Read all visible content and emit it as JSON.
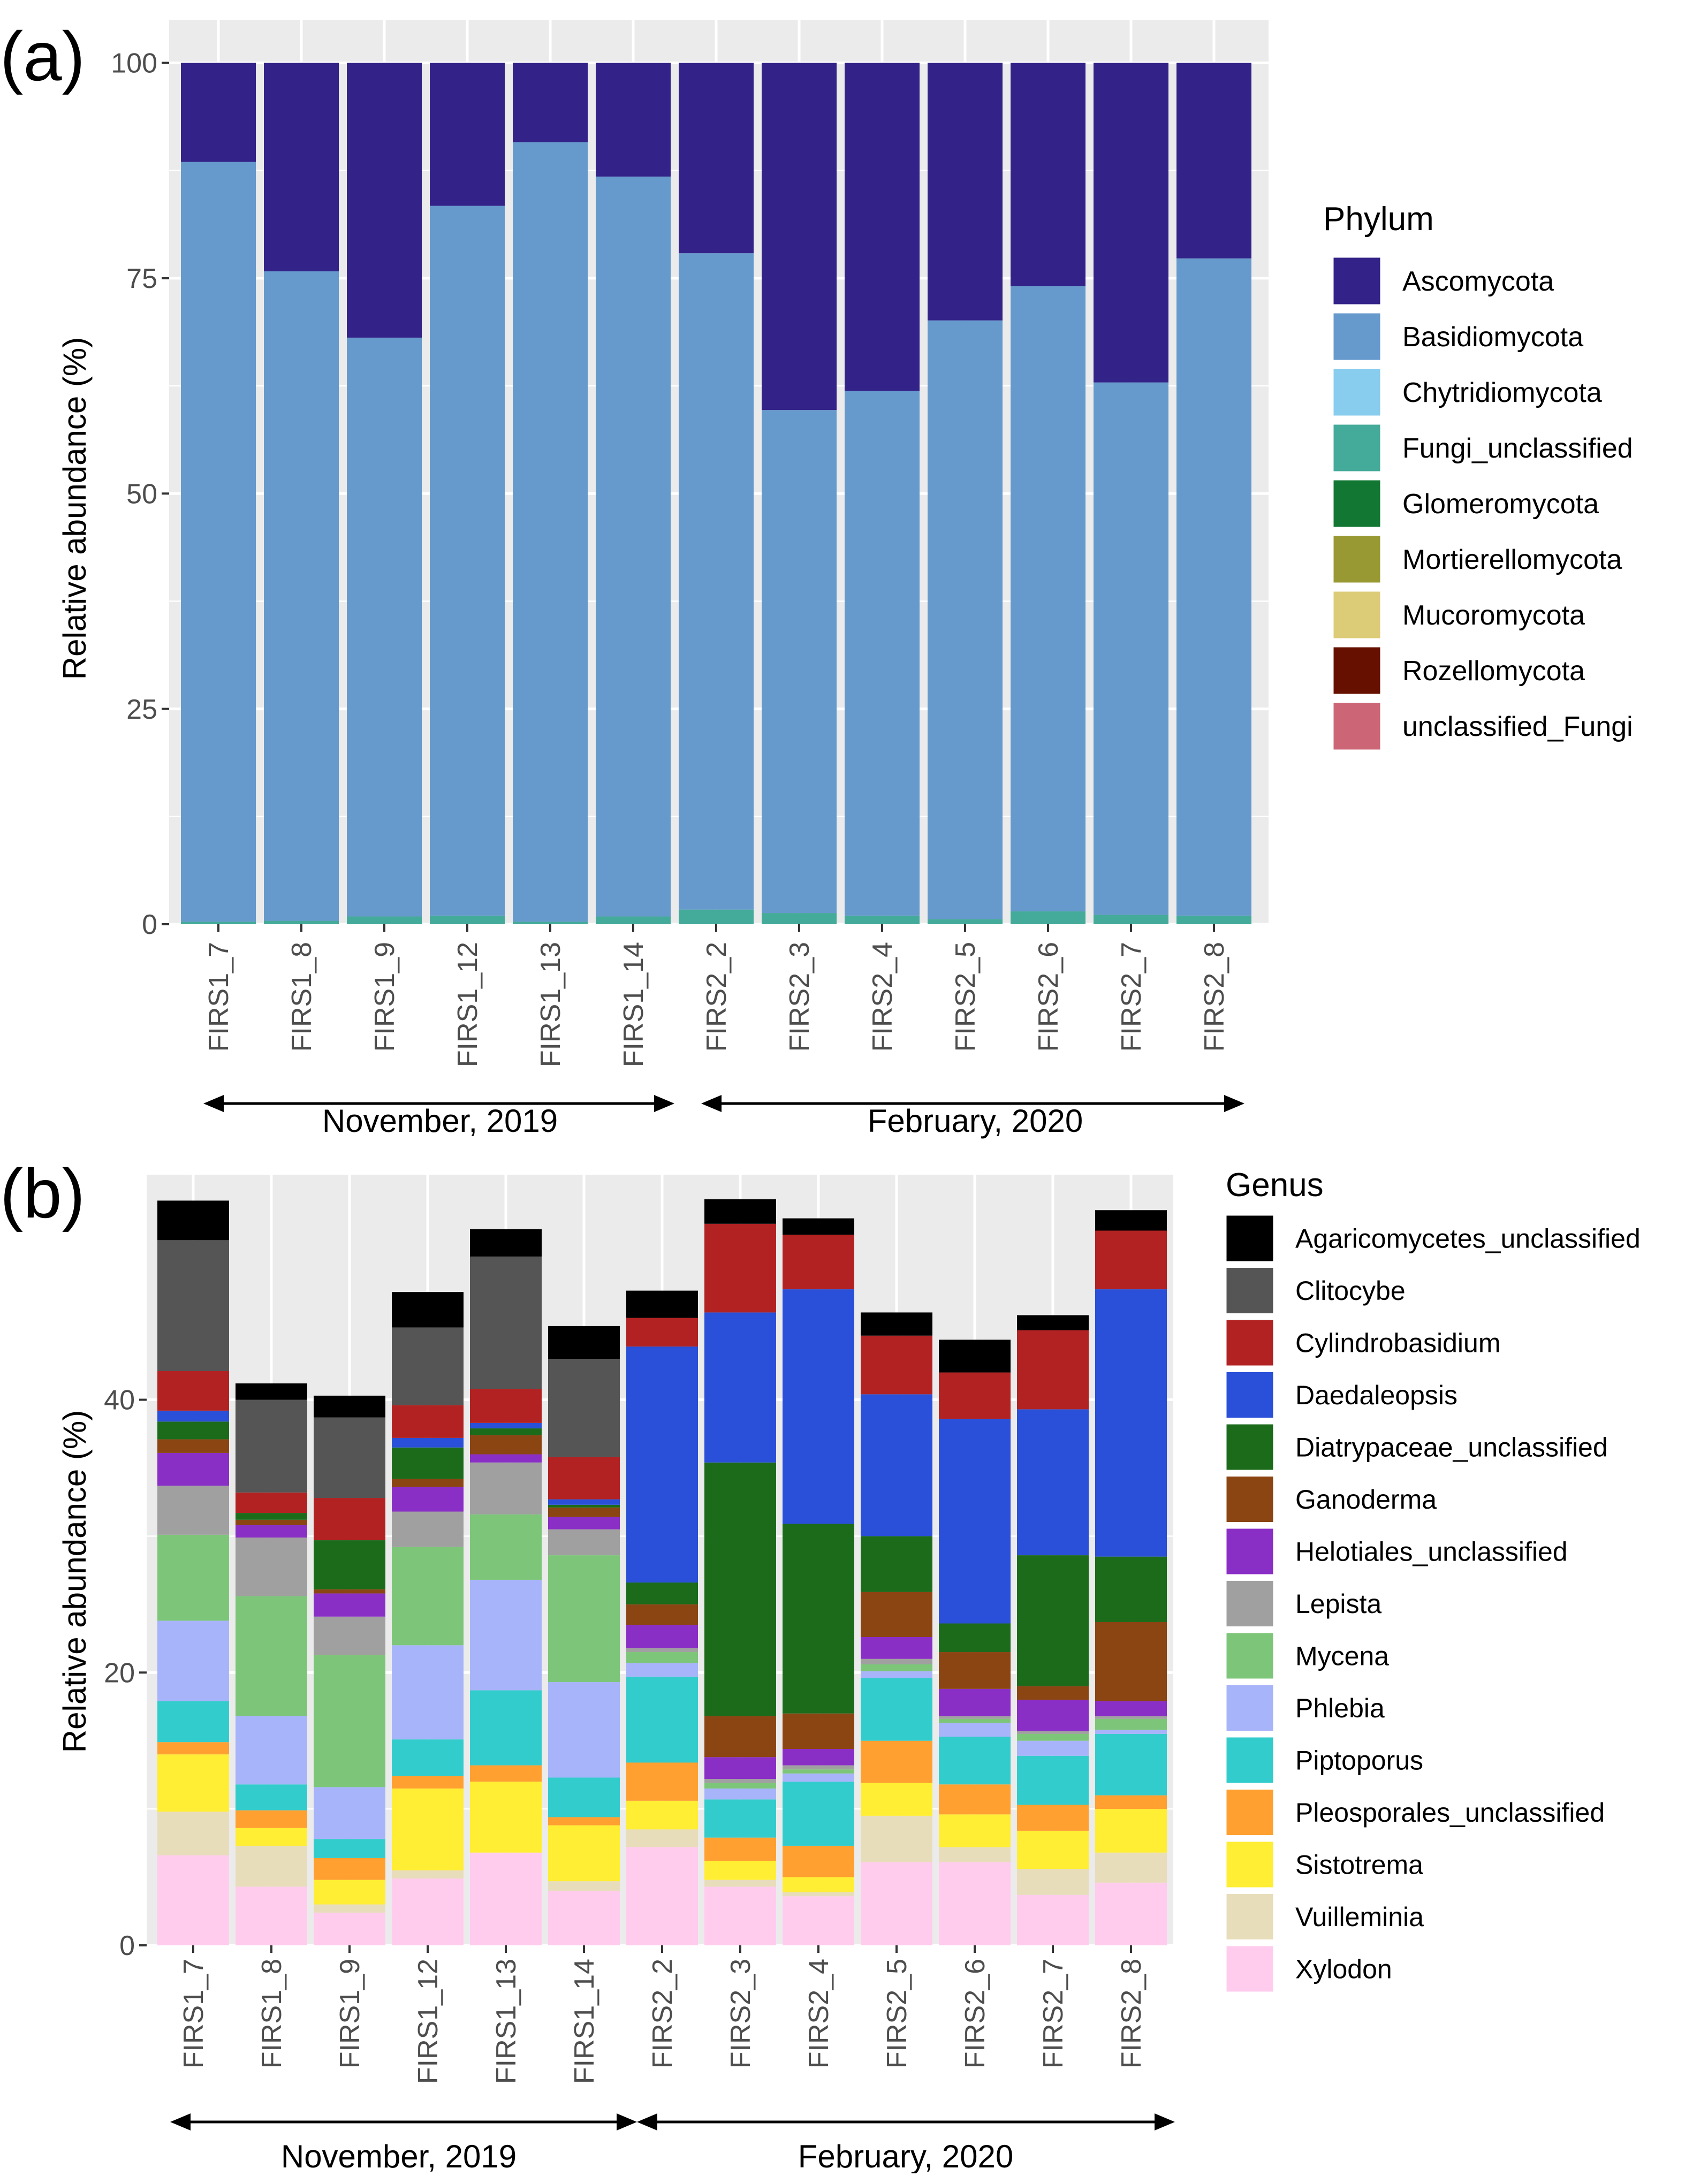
{
  "panel_labels": [
    "(a)",
    "(b)"
  ],
  "period_labels": [
    "November, 2019",
    "February, 2020"
  ],
  "chart_data": [
    {
      "type": "bar",
      "stacked": true,
      "panel": "(a)",
      "ylabel": "Relative abundance (%)",
      "ylim": [
        0,
        100
      ],
      "yticks": [
        0,
        25,
        50,
        75,
        100
      ],
      "categories": [
        "FIRS1_7",
        "FIRS1_8",
        "FIRS1_9",
        "FIRS1_12",
        "FIRS1_13",
        "FIRS1_14",
        "FIRS2_2",
        "FIRS2_3",
        "FIRS2_4",
        "FIRS2_5",
        "FIRS2_6",
        "FIRS2_7",
        "FIRS2_8"
      ],
      "legend_title": "Phylum",
      "legend_position": "right",
      "series": [
        {
          "name": "unclassified_Fungi",
          "color": "#CC6677",
          "values": [
            0,
            0,
            0,
            0,
            0,
            0,
            0,
            0,
            0,
            0,
            0,
            0,
            0
          ]
        },
        {
          "name": "Rozellomycota",
          "color": "#661100",
          "values": [
            0,
            0,
            0,
            0,
            0,
            0,
            0,
            0,
            0,
            0,
            0,
            0,
            0
          ]
        },
        {
          "name": "Mucoromycota",
          "color": "#DDCC77",
          "values": [
            0,
            0,
            0,
            0,
            0,
            0,
            0,
            0,
            0,
            0,
            0,
            0,
            0
          ]
        },
        {
          "name": "Mortierellomycota",
          "color": "#999933",
          "values": [
            0,
            0,
            0,
            0,
            0,
            0,
            0,
            0,
            0,
            0,
            0,
            0,
            0
          ]
        },
        {
          "name": "Glomeromycota",
          "color": "#117733",
          "values": [
            0,
            0,
            0,
            0,
            0,
            0,
            0,
            0,
            0,
            0,
            0,
            0,
            0
          ]
        },
        {
          "name": "Fungi_unclassified",
          "color": "#44AA99",
          "values": [
            0.3,
            0.4,
            0.9,
            1.0,
            0.3,
            0.9,
            1.7,
            1.3,
            1.0,
            0.6,
            1.5,
            1.1,
            1.0
          ]
        },
        {
          "name": "Chytridiomycota",
          "color": "#88CCEE",
          "values": [
            0,
            0,
            0,
            0,
            0,
            0,
            0,
            0,
            0,
            0,
            0,
            0,
            0
          ]
        },
        {
          "name": "Basidiomycota",
          "color": "#6699CC",
          "values": [
            88.2,
            75.4,
            67.2,
            82.4,
            90.5,
            85.9,
            76.2,
            58.4,
            60.9,
            69.5,
            72.6,
            61.8,
            76.3
          ]
        },
        {
          "name": "Ascomycota",
          "color": "#332288",
          "values": [
            11.5,
            24.2,
            31.9,
            16.6,
            9.2,
            13.2,
            22.1,
            40.3,
            38.1,
            29.9,
            25.9,
            37.1,
            22.7
          ]
        }
      ],
      "legend_order": [
        "Ascomycota",
        "Basidiomycota",
        "Chytridiomycota",
        "Fungi_unclassified",
        "Glomeromycota",
        "Mortierellomycota",
        "Mucoromycota",
        "Rozellomycota",
        "unclassified_Fungi"
      ]
    },
    {
      "type": "bar",
      "stacked": true,
      "panel": "(b)",
      "ylabel": "Relative abundance (%)",
      "ylim": [
        0,
        56.5
      ],
      "yticks": [
        0,
        20,
        40
      ],
      "categories": [
        "FIRS1_7",
        "FIRS1_8",
        "FIRS1_9",
        "FIRS1_12",
        "FIRS1_13",
        "FIRS1_14",
        "FIRS2_2",
        "FIRS2_3",
        "FIRS2_4",
        "FIRS2_5",
        "FIRS2_6",
        "FIRS2_7",
        "FIRS2_8"
      ],
      "legend_title": "Genus",
      "legend_position": "right",
      "series": [
        {
          "name": "Xylodon",
          "color": "#FFCCEE",
          "values": [
            6.6,
            4.3,
            2.4,
            4.9,
            6.8,
            4.0,
            7.2,
            4.3,
            3.6,
            6.1,
            6.1,
            3.7,
            4.6
          ]
        },
        {
          "name": "Vuilleminia",
          "color": "#E8DDBB",
          "values": [
            3.2,
            3.0,
            0.6,
            0.6,
            0,
            0.7,
            1.3,
            0.5,
            0.3,
            3.4,
            1.1,
            1.9,
            2.2
          ]
        },
        {
          "name": "Sistotrema",
          "color": "#FFEE33",
          "values": [
            4.2,
            1.3,
            1.8,
            6.0,
            5.2,
            4.1,
            2.1,
            1.4,
            1.1,
            2.4,
            2.4,
            2.8,
            3.2
          ]
        },
        {
          "name": "Pleosporales_unclassified",
          "color": "#FFA030",
          "values": [
            0.9,
            1.3,
            1.6,
            0.9,
            1.2,
            0.6,
            2.8,
            1.7,
            2.3,
            3.1,
            2.2,
            1.9,
            1.0
          ]
        },
        {
          "name": "Piptoporus",
          "color": "#33CCCC",
          "values": [
            3.0,
            1.9,
            1.4,
            2.7,
            5.5,
            2.9,
            6.3,
            2.8,
            4.7,
            4.6,
            3.5,
            3.6,
            4.5
          ]
        },
        {
          "name": "Phlebia",
          "color": "#A8B4FA",
          "values": [
            5.9,
            5.0,
            3.8,
            6.9,
            8.1,
            7.0,
            1.0,
            0.8,
            0.6,
            0.5,
            1.0,
            1.1,
            0.3
          ]
        },
        {
          "name": "Mycena",
          "color": "#7DC679",
          "values": [
            6.3,
            8.8,
            9.7,
            7.2,
            4.8,
            9.3,
            0.8,
            0.4,
            0.3,
            0.5,
            0.3,
            0.5,
            0.8
          ]
        },
        {
          "name": "Lepista",
          "color": "#A0A0A0",
          "values": [
            3.6,
            4.3,
            2.8,
            2.6,
            3.8,
            1.9,
            0.3,
            0.3,
            0.3,
            0.4,
            0.2,
            0.2,
            0.2
          ]
        },
        {
          "name": "Helotiales_unclassified",
          "color": "#8A2FC6",
          "values": [
            2.4,
            0.9,
            1.7,
            1.8,
            0.6,
            0.9,
            1.7,
            1.6,
            1.2,
            1.6,
            2.0,
            2.3,
            1.1
          ]
        },
        {
          "name": "Ganoderma",
          "color": "#8B4513",
          "values": [
            1.0,
            0.4,
            0.3,
            0.6,
            1.4,
            0.7,
            1.5,
            3.0,
            2.6,
            3.3,
            2.7,
            1.0,
            5.8
          ]
        },
        {
          "name": "Diatrypaceae_unclassified",
          "color": "#1B6B1B",
          "values": [
            1.3,
            0.5,
            3.6,
            2.3,
            0.5,
            0.2,
            1.6,
            18.6,
            13.9,
            4.1,
            2.1,
            9.6,
            4.8
          ]
        },
        {
          "name": "Daedaleopsis",
          "color": "#2A4FD8",
          "values": [
            0.8,
            0,
            0,
            0.7,
            0.4,
            0.4,
            17.3,
            11.0,
            17.2,
            10.4,
            15.0,
            10.7,
            19.6
          ]
        },
        {
          "name": "Cylindrobasidium",
          "color": "#B22222",
          "values": [
            2.9,
            1.5,
            3.1,
            2.4,
            2.5,
            3.1,
            2.1,
            6.5,
            4.0,
            4.3,
            3.4,
            5.8,
            4.3
          ]
        },
        {
          "name": "Clitocybe",
          "color": "#555555",
          "values": [
            9.6,
            6.8,
            5.9,
            5.7,
            9.7,
            7.2,
            0,
            0,
            0,
            0,
            0,
            0,
            0
          ]
        },
        {
          "name": "Agaricomycetes_unclassified",
          "color": "#000000",
          "values": [
            2.9,
            1.2,
            1.6,
            2.6,
            2.0,
            2.4,
            2.0,
            1.8,
            1.2,
            1.7,
            2.4,
            1.1,
            1.5
          ]
        }
      ],
      "legend_order": [
        "Agaricomycetes_unclassified",
        "Clitocybe",
        "Cylindrobasidium",
        "Daedaleopsis",
        "Diatrypaceae_unclassified",
        "Ganoderma",
        "Helotiales_unclassified",
        "Lepista",
        "Mycena",
        "Phlebia",
        "Piptoporus",
        "Pleosporales_unclassified",
        "Sistotrema",
        "Vuilleminia",
        "Xylodon"
      ]
    }
  ]
}
